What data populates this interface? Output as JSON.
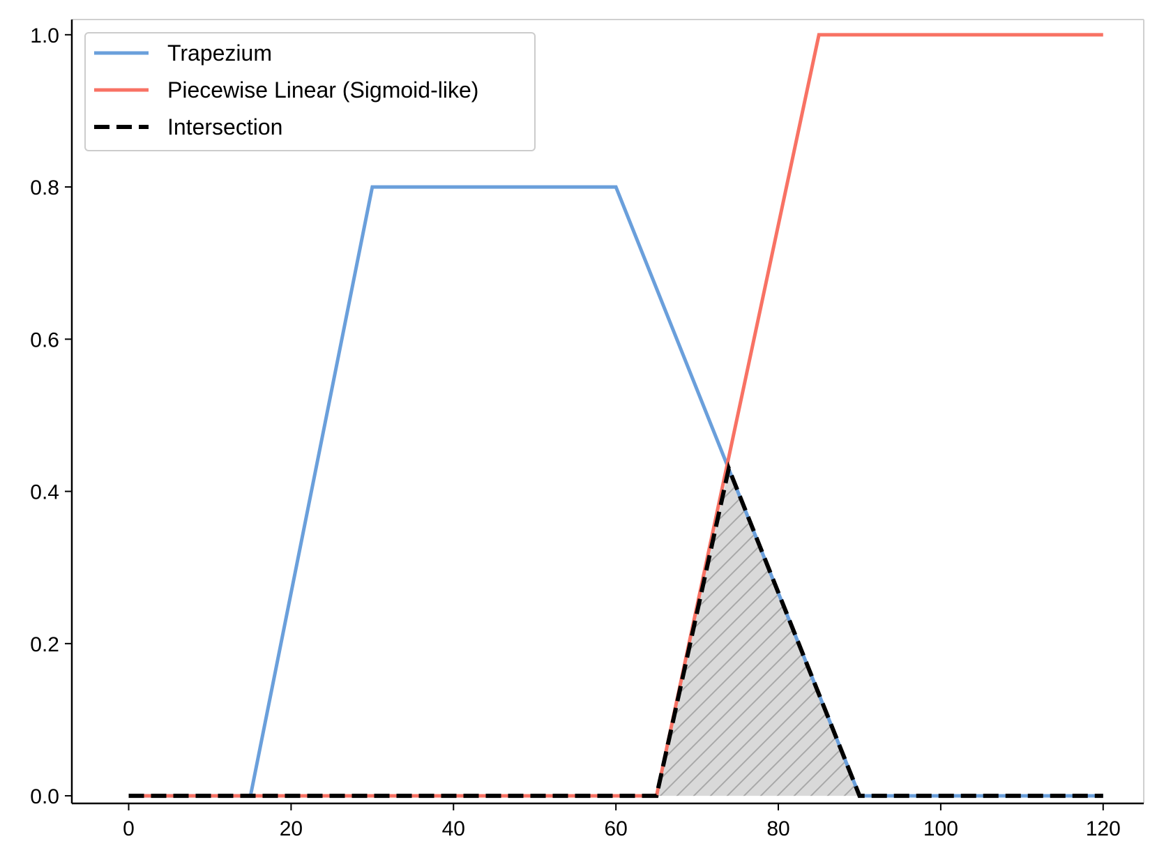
{
  "chart_data": {
    "type": "line",
    "title": "",
    "xlabel": "",
    "ylabel": "",
    "xlim": [
      -7,
      125
    ],
    "ylim": [
      -0.01,
      1.02
    ],
    "x_ticks": [
      0,
      20,
      40,
      60,
      80,
      100,
      120
    ],
    "y_ticks": [
      0.0,
      0.2,
      0.4,
      0.6,
      0.8,
      1.0
    ],
    "x_tick_labels": [
      "0",
      "20",
      "40",
      "60",
      "80",
      "100",
      "120"
    ],
    "y_tick_labels": [
      "0.0",
      "0.2",
      "0.4",
      "0.6",
      "0.8",
      "1.0"
    ],
    "grid": false,
    "legend_position": "top-left",
    "series": [
      {
        "name": "Trapezium",
        "color": "#6a9fdb",
        "style": "solid",
        "x": [
          0,
          15,
          30,
          60,
          90,
          120
        ],
        "y": [
          0,
          0,
          0.8,
          0.8,
          0,
          0
        ]
      },
      {
        "name": "Piecewise Linear (Sigmoid-like)",
        "color": "#f87264",
        "style": "solid",
        "x": [
          0,
          65,
          85,
          120
        ],
        "y": [
          0,
          0,
          1.0,
          1.0
        ]
      },
      {
        "name": "Intersection",
        "color": "#000000",
        "style": "dashed",
        "x": [
          0,
          65,
          73.9,
          90,
          120
        ],
        "y": [
          0,
          0,
          0.43,
          0,
          0
        ]
      }
    ],
    "shaded_region": {
      "fill_color": "#d9d9d9",
      "hatch": "diagonal",
      "x": [
        65,
        73.9,
        90
      ],
      "y": [
        0,
        0.43,
        0
      ]
    }
  }
}
